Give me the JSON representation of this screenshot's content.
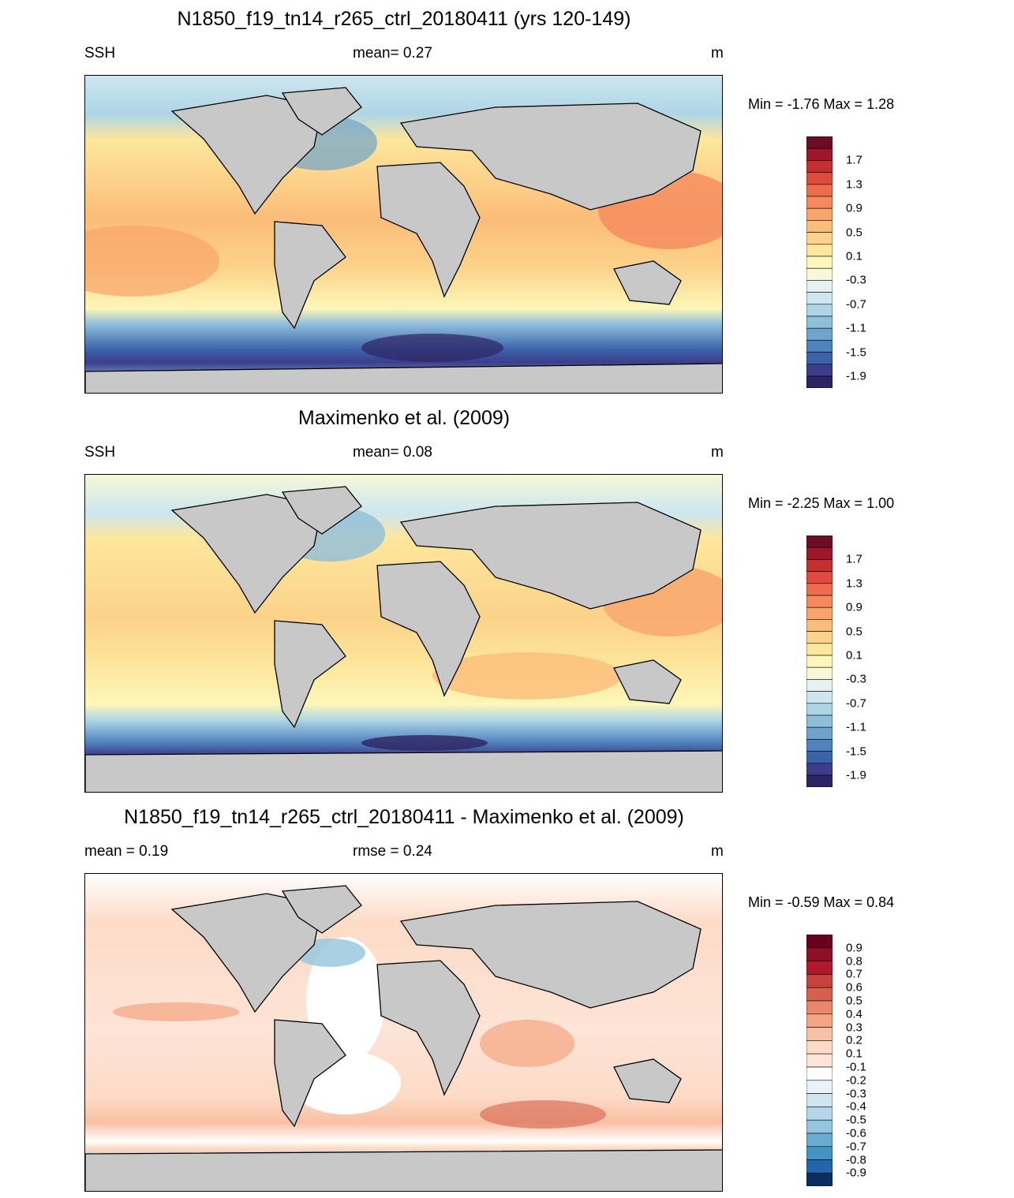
{
  "units": "m",
  "panels": [
    {
      "title": "N1850_f19_tn14_r265_ctrl_20180411 (yrs 120-149)",
      "left_label": "SSH",
      "center_label": "mean=   0.27",
      "right_label": "m",
      "minmax": "Min =  -1.76 Max =    1.28",
      "colorbar_ticks": [
        "1.7",
        "1.3",
        "0.9",
        "0.5",
        "0.1",
        "-0.3",
        "-0.7",
        "-1.1",
        "-1.5",
        "-1.9"
      ]
    },
    {
      "title": "Maximenko et al. (2009)",
      "left_label": "SSH",
      "center_label": "mean=   0.08",
      "right_label": "m",
      "minmax": "Min =  -2.25 Max =    1.00",
      "colorbar_ticks": [
        "1.7",
        "1.3",
        "0.9",
        "0.5",
        "0.1",
        "-0.3",
        "-0.7",
        "-1.1",
        "-1.5",
        "-1.9"
      ]
    },
    {
      "title": "N1850_f19_tn14_r265_ctrl_20180411 - Maximenko et al. (2009)",
      "left_label": "mean =   0.19",
      "center_label": "rmse =   0.24",
      "right_label": "m",
      "minmax": "Min =  -0.59 Max =   0.84",
      "colorbar_ticks": [
        "0.9",
        "0.8",
        "0.7",
        "0.6",
        "0.5",
        "0.4",
        "0.3",
        "0.2",
        "0.1",
        "-0.1",
        "-0.2",
        "-0.3",
        "-0.4",
        "-0.5",
        "-0.6",
        "-0.7",
        "-0.8",
        "-0.9"
      ]
    }
  ],
  "chart_data": [
    {
      "type": "heatmap",
      "title": "N1850_f19_tn14_r265_ctrl_20180411 (yrs 120-149)",
      "variable": "SSH",
      "units": "m",
      "mean": 0.27,
      "min": -1.76,
      "max": 1.28,
      "colorbar_levels": [
        1.7,
        1.3,
        0.9,
        0.5,
        0.1,
        -0.3,
        -0.7,
        -1.1,
        -1.5,
        -1.9
      ],
      "colors": [
        "#2d2462",
        "#3d3d8c",
        "#3b63a9",
        "#4f83bd",
        "#6ea3cc",
        "#8fbedb",
        "#aed5e6",
        "#cde6ef",
        "#e6f2f2",
        "#f6f8d8",
        "#fdf6b8",
        "#fde79c",
        "#fcd28a",
        "#fbbd79",
        "#f9a46a",
        "#f5895d",
        "#ee6b4b",
        "#e04a3c",
        "#c42f31",
        "#9e1728",
        "#6b0d24"
      ]
    },
    {
      "type": "heatmap",
      "title": "Maximenko et al. (2009)",
      "variable": "SSH",
      "units": "m",
      "mean": 0.08,
      "min": -2.25,
      "max": 1.0,
      "colorbar_levels": [
        1.7,
        1.3,
        0.9,
        0.5,
        0.1,
        -0.3,
        -0.7,
        -1.1,
        -1.5,
        -1.9
      ],
      "colors": [
        "#2d2462",
        "#3d3d8c",
        "#3b63a9",
        "#4f83bd",
        "#6ea3cc",
        "#8fbedb",
        "#aed5e6",
        "#cde6ef",
        "#e6f2f2",
        "#f6f8d8",
        "#fdf6b8",
        "#fde79c",
        "#fcd28a",
        "#fbbd79",
        "#f9a46a",
        "#f5895d",
        "#ee6b4b",
        "#e04a3c",
        "#c42f31",
        "#9e1728",
        "#6b0d24"
      ]
    },
    {
      "type": "heatmap",
      "title": "N1850_f19_tn14_r265_ctrl_20180411 - Maximenko et al. (2009)",
      "units": "m",
      "mean": 0.19,
      "rmse": 0.24,
      "min": -0.59,
      "max": 0.84,
      "colorbar_levels": [
        0.9,
        0.8,
        0.7,
        0.6,
        0.5,
        0.4,
        0.3,
        0.2,
        0.1,
        -0.1,
        -0.2,
        -0.3,
        -0.4,
        -0.5,
        -0.6,
        -0.7,
        -0.8,
        -0.9
      ],
      "colors": [
        "#0b2e62",
        "#134b8a",
        "#2166ac",
        "#327db8",
        "#4393c3",
        "#6aabd2",
        "#92c5de",
        "#b4d6e8",
        "#d1e5f0",
        "#e9f2f8",
        "#ffffff",
        "#fde4d6",
        "#fddbc7",
        "#f8c0a4",
        "#f4a582",
        "#e9876a",
        "#d6604d",
        "#c7433f",
        "#b2182b",
        "#8f0f26",
        "#67001f"
      ]
    }
  ]
}
